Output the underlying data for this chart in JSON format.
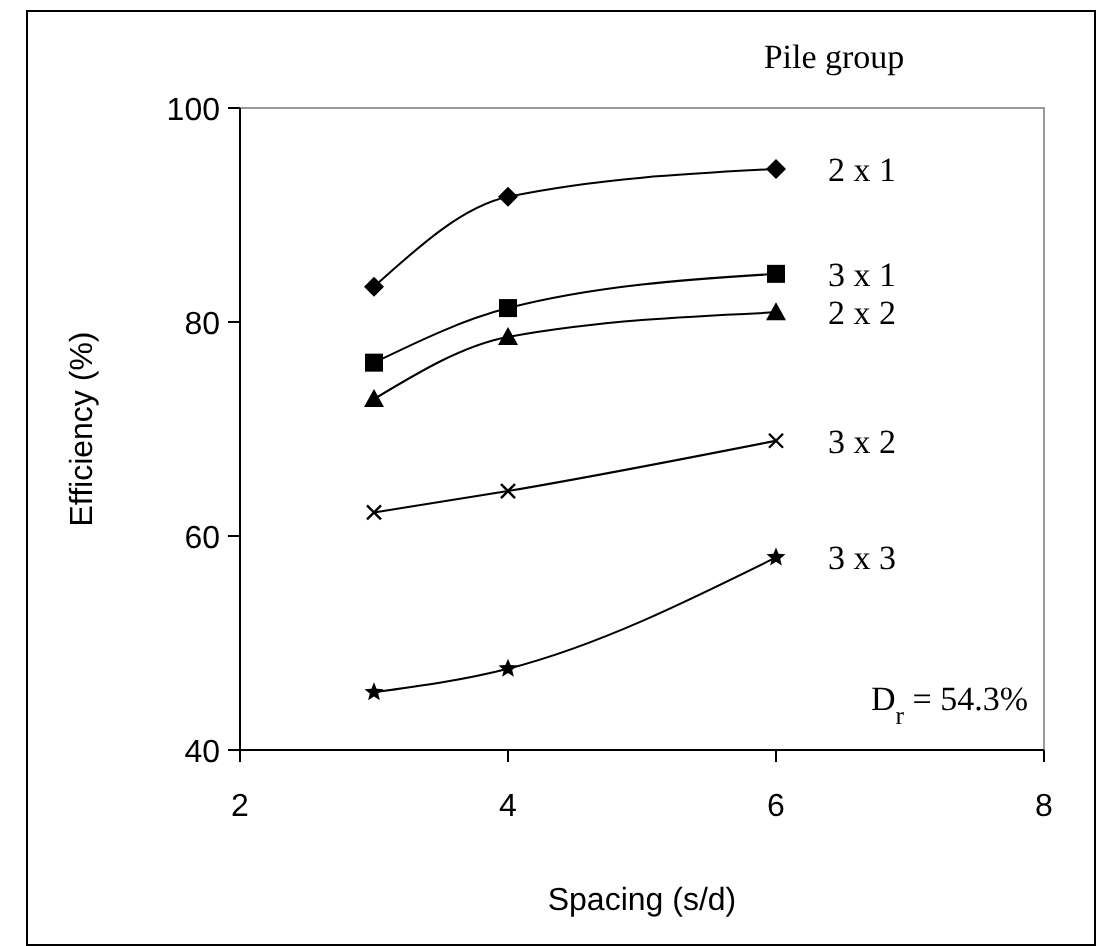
{
  "chart_data": {
    "type": "line",
    "xlabel": "Spacing (s/d)",
    "ylabel": "Efficiency (%)",
    "legend_title": "Pile group",
    "x": [
      3,
      4,
      6
    ],
    "series": [
      {
        "name": "2 x 1",
        "color": "#000000",
        "marker": "diamond",
        "values": [
          83.3,
          91.7,
          94.3
        ]
      },
      {
        "name": "3 x 1",
        "color": "#000000",
        "marker": "square",
        "values": [
          76.2,
          81.3,
          84.5
        ]
      },
      {
        "name": "2 x 2",
        "color": "#000000",
        "marker": "triangle",
        "values": [
          72.8,
          78.6,
          80.9
        ]
      },
      {
        "name": "3 x 2",
        "color": "#000000",
        "marker": "cross",
        "values": [
          62.2,
          64.2,
          68.9
        ]
      },
      {
        "name": "3 x 3",
        "color": "#000000",
        "marker": "star",
        "values": [
          45.4,
          47.6,
          58.0
        ]
      }
    ],
    "xlim": [
      2,
      8
    ],
    "xticks": [
      2,
      4,
      6,
      8
    ],
    "ylim": [
      40,
      100
    ],
    "yticks": [
      40,
      60,
      80,
      100
    ],
    "grid": false,
    "line_style": "solid",
    "annotations": [
      "D$_{r}$ = 54.3%"
    ]
  }
}
